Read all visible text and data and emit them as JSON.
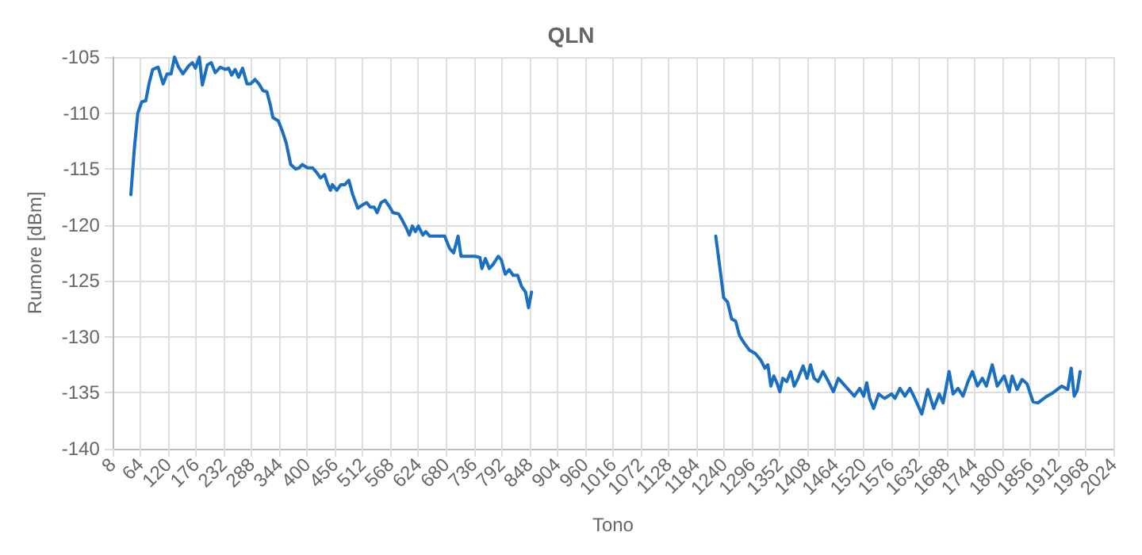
{
  "chart_data": {
    "type": "line",
    "title": "QLN",
    "xlabel": "Tono",
    "ylabel": "Rumore [dBm]",
    "x": [
      45,
      52,
      59,
      67,
      75,
      82,
      89,
      100,
      110,
      118,
      126,
      133,
      141,
      150,
      161,
      169,
      175,
      183,
      189,
      199,
      207,
      215,
      225,
      235,
      242,
      248,
      255,
      262,
      270,
      279,
      286,
      295,
      303,
      311,
      319,
      326,
      331,
      342,
      350,
      358,
      367,
      377,
      384,
      390,
      401,
      411,
      419,
      427,
      435,
      441,
      447,
      451,
      460,
      468,
      476,
      484,
      492,
      502,
      512,
      520,
      527,
      535,
      541,
      549,
      557,
      565,
      573,
      584,
      592,
      600,
      606,
      612,
      618,
      624,
      633,
      639,
      647,
      657,
      667,
      677,
      687,
      695,
      704,
      710,
      723,
      738,
      748,
      752,
      759,
      767,
      775,
      785,
      791,
      799,
      807,
      815,
      824,
      832,
      840,
      846,
      852,
      1000,
      1223,
      1231,
      1239,
      1247,
      1255,
      1263,
      1271,
      1281,
      1291,
      1303,
      1314,
      1322,
      1328,
      1334,
      1340,
      1346,
      1352,
      1358,
      1366,
      1374,
      1381,
      1389,
      1399,
      1407,
      1414,
      1421,
      1429,
      1439,
      1450,
      1460,
      1470,
      1482,
      1494,
      1502,
      1513,
      1521,
      1527,
      1533,
      1541,
      1551,
      1563,
      1577,
      1584,
      1594,
      1604,
      1614,
      1624,
      1638,
      1650,
      1662,
      1673,
      1681,
      1693,
      1701,
      1711,
      1721,
      1731,
      1740,
      1750,
      1760,
      1768,
      1780,
      1790,
      1804,
      1814,
      1820,
      1830,
      1840,
      1850,
      1862,
      1872,
      1890,
      1902,
      1920,
      1932,
      1939,
      1945,
      1951,
      1957
    ],
    "series": [
      {
        "color": "#1a6fc0",
        "values": [
          -117.3,
          -113.2,
          -110,
          -109,
          -108.9,
          -107.3,
          -106.1,
          -105.9,
          -107.4,
          -106.5,
          -106.5,
          -105,
          -105.9,
          -106.5,
          -105.8,
          -105.5,
          -106,
          -105,
          -107.5,
          -105.7,
          -105.5,
          -106.4,
          -105.9,
          -106.1,
          -106,
          -106.6,
          -106.1,
          -106.8,
          -106,
          -107.4,
          -107.4,
          -107,
          -107.4,
          -108,
          -108.1,
          -109.3,
          -110.4,
          -110.7,
          -111.6,
          -112.7,
          -114.6,
          -115,
          -114.9,
          -114.6,
          -114.9,
          -114.9,
          -115.3,
          -115.8,
          -115.5,
          -116.3,
          -116.9,
          -116.4,
          -116.9,
          -116.4,
          -116.4,
          -116,
          -117.3,
          -118.5,
          -118.2,
          -118,
          -118.4,
          -118.4,
          -118.9,
          -118,
          -117.8,
          -118.3,
          -118.9,
          -119,
          -119.6,
          -120.3,
          -120.9,
          -120.1,
          -120.6,
          -120.1,
          -120.9,
          -120.6,
          -121,
          -121,
          -121,
          -121,
          -122.1,
          -122.5,
          -121,
          -122.8,
          -122.8,
          -122.8,
          -122.9,
          -123.9,
          -123,
          -123.9,
          -123.5,
          -122.8,
          -123.1,
          -124.4,
          -124,
          -124.5,
          -124.5,
          -125.5,
          -126,
          -127.4,
          -126,
          null,
          -121,
          -123.7,
          -126.5,
          -126.9,
          -128.4,
          -128.6,
          -129.9,
          -130.6,
          -131.2,
          -131.5,
          -132.1,
          -132.8,
          -132.5,
          -134.4,
          -133.5,
          -134.1,
          -134.9,
          -133.7,
          -134,
          -133.1,
          -134.4,
          -133.7,
          -132.6,
          -133.7,
          -132.5,
          -133.7,
          -134,
          -133.1,
          -134,
          -134.9,
          -133.7,
          -134.3,
          -134.9,
          -135.3,
          -134.6,
          -135.3,
          -134.1,
          -135.5,
          -136.4,
          -135.1,
          -135.5,
          -135.1,
          -135.5,
          -134.6,
          -135.3,
          -134.6,
          -135.5,
          -136.9,
          -134.7,
          -136.4,
          -135.1,
          -135.9,
          -133.1,
          -135.1,
          -134.6,
          -135.3,
          -134,
          -133.1,
          -134.4,
          -133.7,
          -134.4,
          -132.5,
          -134.4,
          -133.5,
          -134.9,
          -133.5,
          -134.7,
          -133.8,
          -134.2,
          -135.8,
          -135.9,
          -135.3,
          -135,
          -134.4,
          -134.7,
          -132.8,
          -135.3,
          -134.8,
          -133.1
        ]
      }
    ],
    "xlim": [
      8,
      2024
    ],
    "xticks": [
      8,
      64,
      120,
      176,
      232,
      288,
      344,
      400,
      456,
      512,
      568,
      624,
      680,
      736,
      792,
      848,
      904,
      960,
      1016,
      1072,
      1128,
      1184,
      1240,
      1296,
      1352,
      1408,
      1464,
      1520,
      1576,
      1632,
      1688,
      1744,
      1800,
      1856,
      1912,
      1968,
      2024
    ],
    "ylim": [
      -140,
      -105
    ],
    "yticks": [
      -140,
      -135,
      -130,
      -125,
      -120,
      -115,
      -110,
      -105
    ],
    "grid": true,
    "marker": "none",
    "line_style": "solid"
  }
}
